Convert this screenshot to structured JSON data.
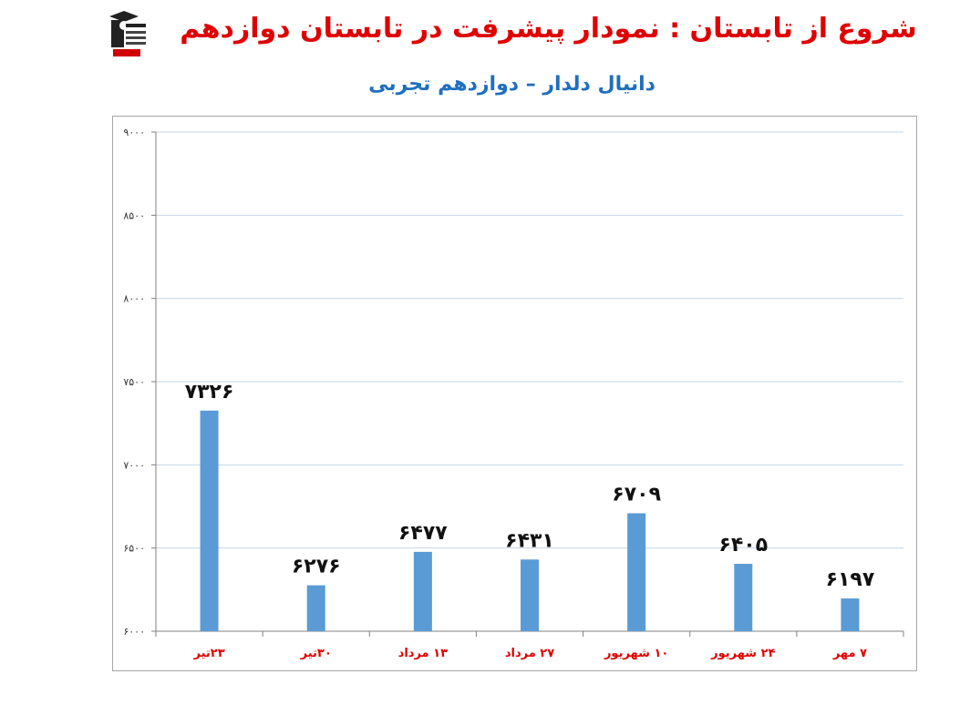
{
  "header": {
    "title": "شروع از تابستان : نمودار پیشرفت در تابستان دوازدهم",
    "subtitle": "دانیال دلدار – دوازدهم تجربی"
  },
  "colors": {
    "title": "#e00000",
    "subtitle": "#1f6fbf",
    "bar": "#5b9bd5",
    "grid": "#c6d4e6"
  },
  "chart_data": {
    "type": "bar",
    "categories": [
      "۲۳تیر",
      "۳۰تیر",
      "۱۳ مرداد",
      "۲۷ مرداد",
      "۱۰ شهریور",
      "۲۴ شهریور",
      "۷ مهر"
    ],
    "values": [
      7326,
      6276,
      6477,
      6431,
      6709,
      6405,
      6197
    ],
    "value_labels": [
      "۷۳۲۶",
      "۶۲۷۶",
      "۶۴۷۷",
      "۶۴۳۱",
      "۶۷۰۹",
      "۶۴۰۵",
      "۶۱۹۷"
    ],
    "ylim": [
      6000,
      9000
    ],
    "yticks": [
      6000,
      6500,
      7000,
      7500,
      8000,
      8500,
      9000
    ],
    "ytick_labels": [
      "۶۰۰۰",
      "۶۵۰۰",
      "۷۰۰۰",
      "۷۵۰۰",
      "۸۰۰۰",
      "۸۵۰۰",
      "۹۰۰۰"
    ],
    "grid": true,
    "legend": false
  }
}
